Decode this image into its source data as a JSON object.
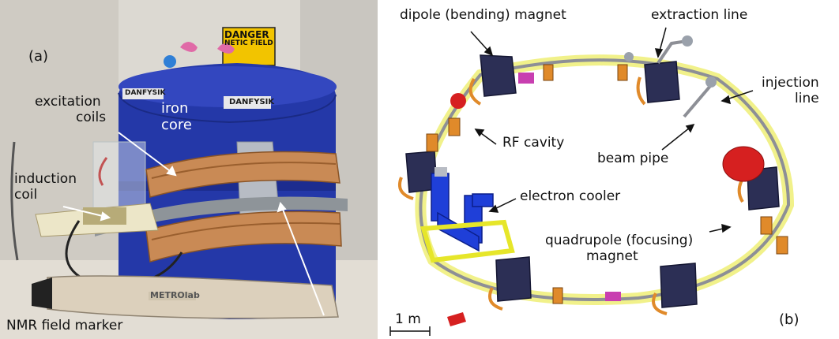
{
  "panel_a": {
    "letter": "(a)",
    "labels": {
      "danger_line1": "DANGER",
      "danger_line2": "NETIC FIELD",
      "excitation_line1": "excitation",
      "excitation_line2": "coils",
      "iron_line1": "iron",
      "iron_line2": "core",
      "induction_line1": "induction",
      "induction_line2": "coil",
      "nmr": "NMR field marker"
    },
    "brand_plates": [
      "DANFYSIK",
      "DANFYSIK"
    ],
    "probe_brand": "METROlab",
    "colors": {
      "magnet_blue": "#2438a8",
      "copper": "#c98a55",
      "danger_yellow": "#f2c400"
    }
  },
  "panel_b": {
    "letter": "(b)",
    "labels": {
      "dipole": "dipole (bending) magnet",
      "extraction": "extraction line",
      "injection_line1": "injection",
      "injection_line2": "line",
      "rf": "RF cavity",
      "beam_pipe": "beam pipe",
      "cooler": "electron cooler",
      "quad_line1": "quadrupole (focusing)",
      "quad_line2": "magnet",
      "scale": "1 m"
    },
    "colors": {
      "dipole": "#2c2f55",
      "girder": "#e6e62a",
      "cooler": "#1f3fd8",
      "rf_red": "#d62020",
      "quad_orange": "#e08a2a"
    }
  }
}
